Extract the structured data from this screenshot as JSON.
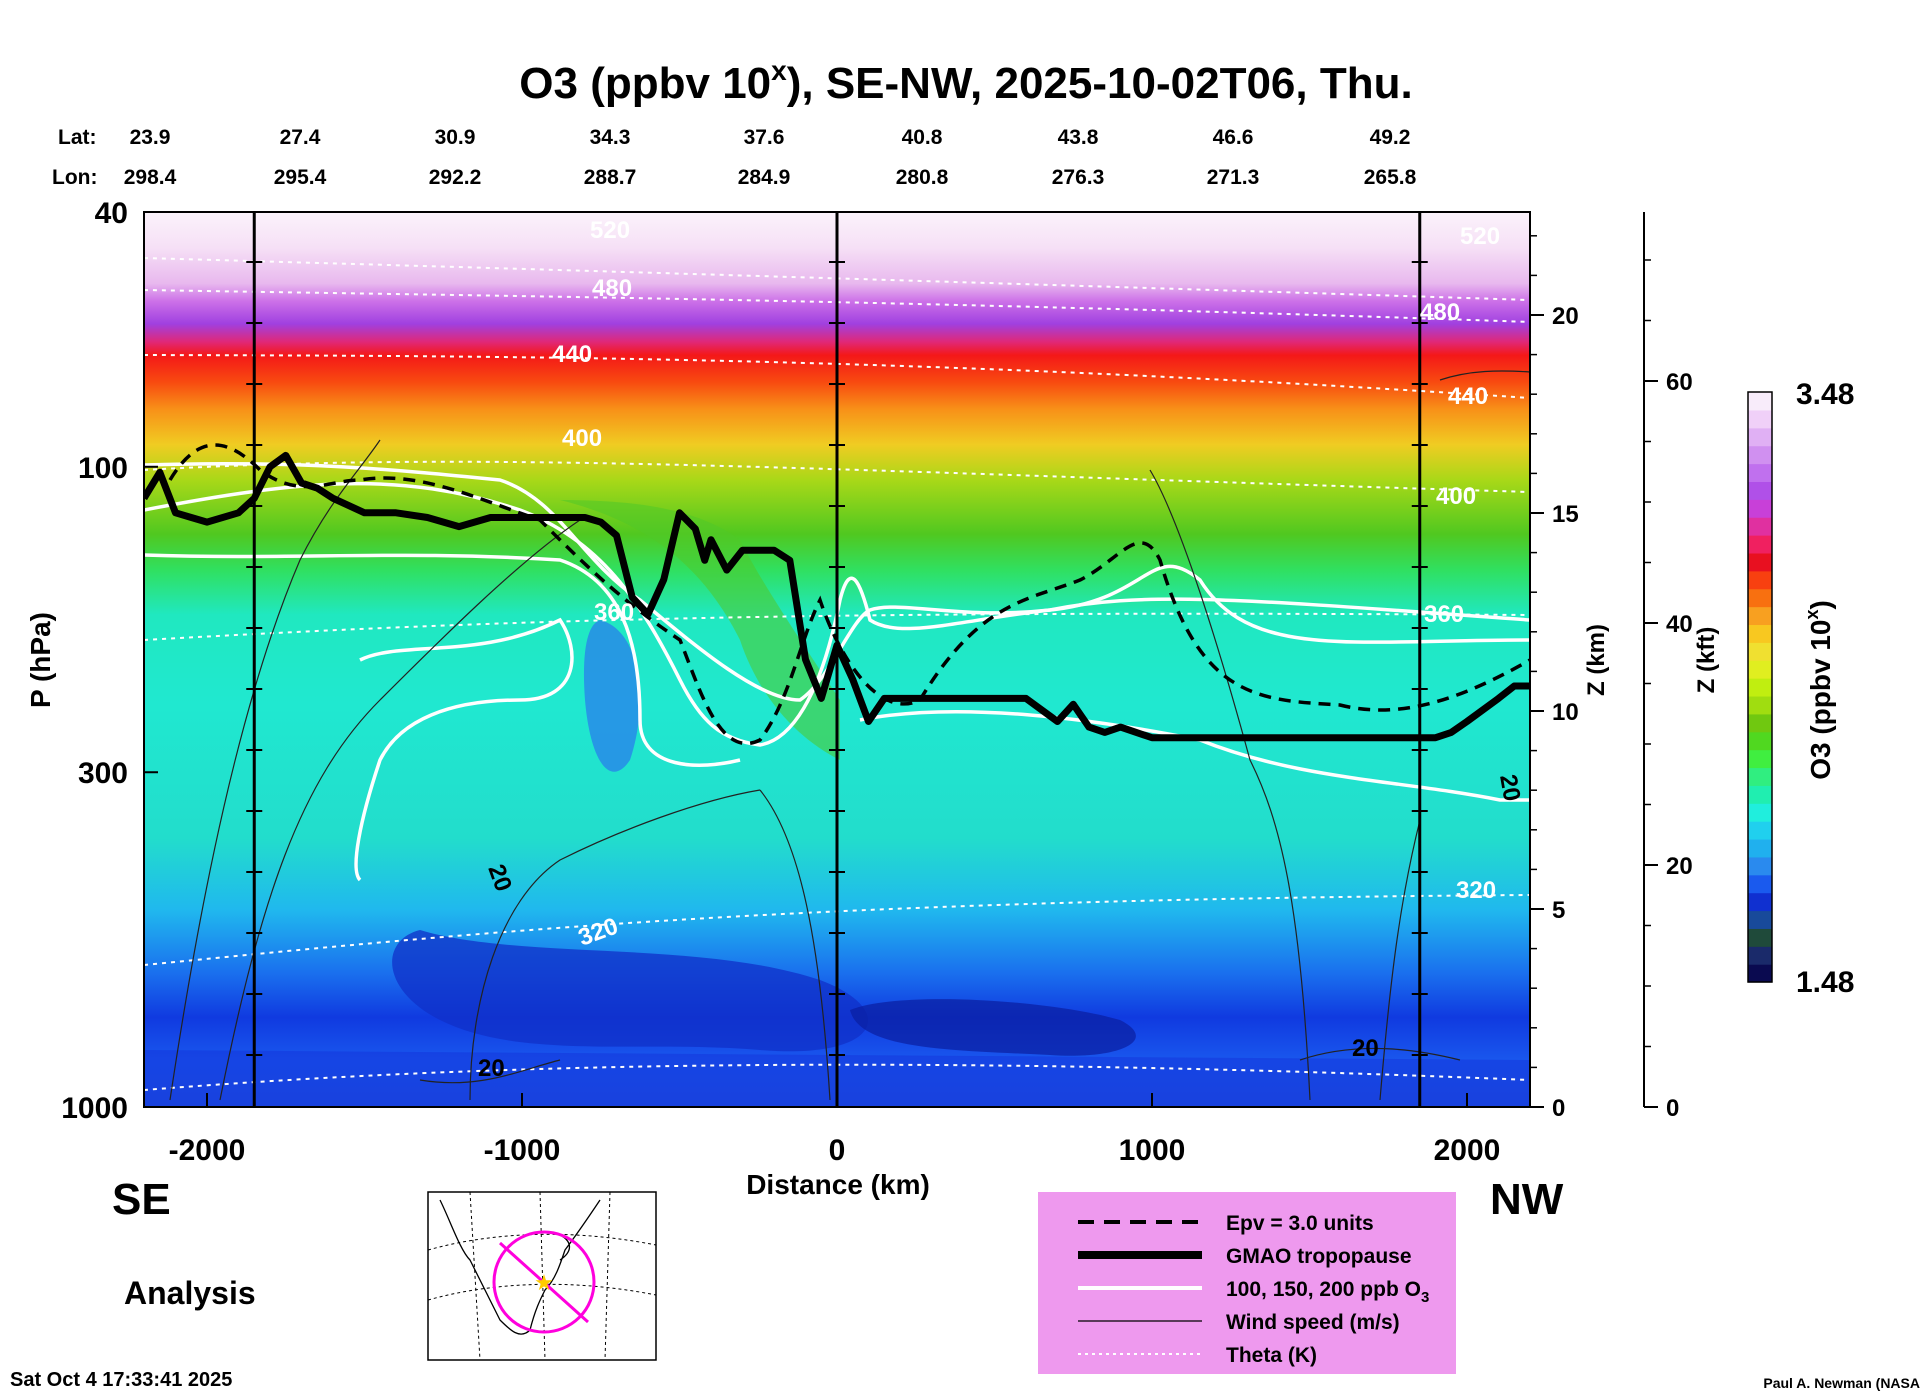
{
  "title": {
    "prefix": "O3 (ppbv 10",
    "superscript": "x",
    "suffix": "), SE-NW, 2025-10-02T06, Thu."
  },
  "location_header": {
    "lat_label": "Lat:",
    "lon_label": "Lon:",
    "lat": [
      "23.9",
      "27.4",
      "30.9",
      "34.3",
      "37.6",
      "40.8",
      "43.8",
      "46.6",
      "49.2"
    ],
    "lon": [
      "298.4",
      "295.4",
      "292.2",
      "288.7",
      "284.9",
      "280.8",
      "276.3",
      "271.3",
      "265.8"
    ]
  },
  "direction_labels": {
    "left": "SE",
    "right": "NW"
  },
  "analysis_label": "Analysis",
  "timestamp": "Sat Oct  4 17:33:41 2025",
  "credit": "Paul A. Newman (NASA",
  "legend": {
    "background": "#ee99ee",
    "items": [
      {
        "style": "dashed-thick",
        "label": "Epv = 3.0 units"
      },
      {
        "style": "solid-heavy",
        "label": "GMAO tropopause"
      },
      {
        "style": "solid-white",
        "label": "100, 150, 200 ppb O",
        "subscript": "3"
      },
      {
        "style": "solid-thin",
        "label": "Wind speed (m/s)"
      },
      {
        "style": "dotted-white",
        "label": "Theta (K)"
      }
    ]
  },
  "colorbar": {
    "max_label": "3.48",
    "min_label": "1.48",
    "title_prefix": "O3 (ppbv 10",
    "title_sup": "x",
    "title_suffix": ")",
    "colors": [
      "#0a0a50",
      "#1a2a6a",
      "#1f4a3a",
      "#184a9a",
      "#1030d0",
      "#1a5aee",
      "#2a8aee",
      "#20b0ee",
      "#20d0ee",
      "#20eedd",
      "#20eeb0",
      "#30ee80",
      "#40ee40",
      "#50d820",
      "#70c810",
      "#a0dd10",
      "#c0ee10",
      "#e0ee20",
      "#f0e030",
      "#f8c820",
      "#f8a020",
      "#f87010",
      "#f84010",
      "#e81020",
      "#f02060",
      "#e030a0",
      "#c840d8",
      "#b050e8",
      "#c070ee",
      "#d090f0",
      "#e0b0f4",
      "#f0d0f8",
      "#f8ecfa"
    ]
  },
  "chart_data": {
    "type": "heatmap",
    "title": "O3 (ppbv 10^x), SE-NW, 2025-10-02T06, Thu.",
    "xlabel": "Distance (km)",
    "ylabel": "P (hPa)",
    "y2label": "Z (km)",
    "y3label": "Z (kft)",
    "colorbar_label": "O3 (ppbv 10^x)",
    "xlim": [
      -2200,
      2200
    ],
    "ylim": [
      1000,
      40
    ],
    "yscale": "log",
    "x_ticks": [
      -2000,
      -1000,
      0,
      1000,
      2000
    ],
    "x_tick_labels": [
      "-2000",
      "-1000",
      "0",
      "1000",
      "2000"
    ],
    "y_ticks": [
      40,
      100,
      300,
      1000
    ],
    "y_tick_labels": [
      "40",
      "100",
      "300",
      "1000"
    ],
    "z_km_ticks": [
      0,
      5,
      10,
      15,
      20
    ],
    "z_km_tick_labels": [
      "0",
      "5",
      "10",
      "15",
      "20"
    ],
    "z_kft_ticks": [
      0,
      20,
      40,
      60
    ],
    "z_kft_tick_labels": [
      "0",
      "20",
      "40",
      "60"
    ],
    "colorbar_range": [
      1.48,
      3.48
    ],
    "vertical_reference_lines_km": [
      -1850,
      0,
      1850
    ],
    "tropopause_pressure_hpa": {
      "x": [
        -2200,
        -2150,
        -2100,
        -2050,
        -2000,
        -1900,
        -1850,
        -1800,
        -1750,
        -1700,
        -1650,
        -1600,
        -1500,
        -1400,
        -1300,
        -1200,
        -1100,
        -1000,
        -900,
        -800,
        -750,
        -700,
        -650,
        -600,
        -550,
        -500,
        -450,
        -420,
        -400,
        -350,
        -300,
        -250,
        -200,
        -150,
        -100,
        -50,
        0,
        50,
        100,
        150,
        200,
        300,
        400,
        500,
        600,
        700,
        750,
        800,
        850,
        900,
        1000,
        1100,
        1200,
        1400,
        1600,
        1800,
        1900,
        1950,
        2000,
        2100,
        2150,
        2200
      ],
      "y": [
        112,
        102,
        118,
        120,
        122,
        118,
        112,
        100,
        96,
        106,
        108,
        112,
        118,
        118,
        120,
        124,
        120,
        120,
        120,
        120,
        122,
        128,
        160,
        170,
        150,
        118,
        125,
        140,
        130,
        145,
        135,
        135,
        135,
        140,
        200,
        230,
        190,
        215,
        250,
        230,
        230,
        230,
        230,
        230,
        230,
        250,
        235,
        255,
        260,
        255,
        265,
        265,
        265,
        265,
        265,
        265,
        265,
        260,
        250,
        230,
        220,
        220
      ]
    },
    "labeled_contours": {
      "theta_K": [
        "320",
        "360",
        "400",
        "440",
        "480",
        "520"
      ],
      "wind_speed_m_s": [
        "20"
      ]
    }
  }
}
